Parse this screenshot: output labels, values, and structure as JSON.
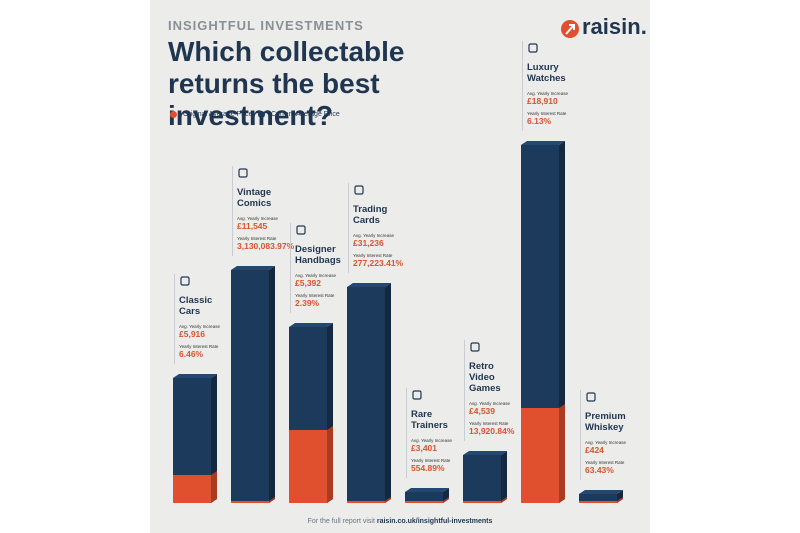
{
  "chart_data": {
    "type": "bar",
    "kicker": "INSIGHTFUL INVESTMENTS",
    "title": "Which collectable returns the best investment?",
    "brand": "raisin.",
    "footer_text": "For the full report visit",
    "footer_link": "raisin.co.uk/insightful-investments",
    "increase_label": "Avg. Yearly Increase",
    "rate_label": "Yearly Interest Rate",
    "categories": [
      "Classic Cars",
      "Vintage Comics",
      "Designer Handbags",
      "Trading Cards",
      "Rare Trainers",
      "Retro Video Games",
      "Luxury Watches",
      "Premium Whiskey"
    ],
    "increases": [
      "£5,916",
      "£11,545",
      "£5,392",
      "£31,236",
      "£3,401",
      "£4,539",
      "£18,910",
      "£424"
    ],
    "rates": [
      "6.46%",
      "3,130,083.97%",
      "2.39%",
      "277,223.41%",
      "554.89%",
      "13,920.84%",
      "6.13%",
      "63.43%"
    ],
    "series": [
      {
        "name": "Original Average Price",
        "color": "#e0502e",
        "values": [
          28,
          2,
          73,
          2,
          2,
          2,
          95,
          2
        ]
      },
      {
        "name": "Current Average Price",
        "color": "#1c3a5b",
        "values": [
          125,
          233,
          176,
          216,
          11,
          48,
          358,
          9
        ]
      }
    ],
    "ylim": [
      0,
      400
    ]
  }
}
